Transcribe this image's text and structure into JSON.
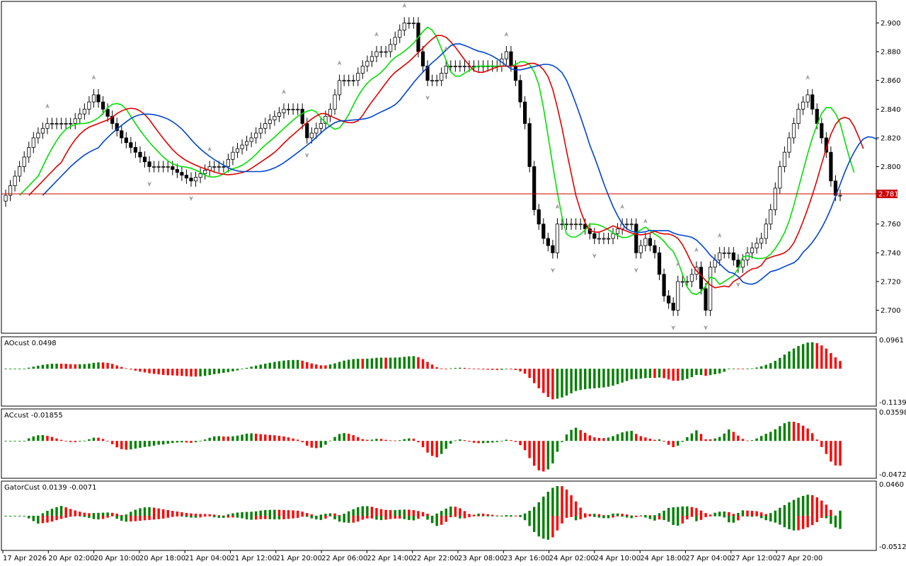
{
  "instrument": {
    "current_price_tag": "2.781",
    "price_line_color": "#cc0000"
  },
  "main_pane": {
    "price_axis": [
      "2.900",
      "2.880",
      "2.860",
      "2.840",
      "2.820",
      "2.800",
      "2.781",
      "2.760",
      "2.740",
      "2.720",
      "2.700"
    ],
    "ylim": [
      2.684,
      2.915
    ],
    "candle_colors": {
      "bull": "#ffffff",
      "bear": "#000000",
      "outline": "#000000"
    },
    "alligator_colors": {
      "lips": "#00e000",
      "teeth": "#e00000",
      "jaw": "#0044cc"
    },
    "fractal_icon": "arrowhead-icon"
  },
  "indicators": [
    {
      "key": "ao",
      "title": "AOcust 0.0498",
      "max_label": "0.0961",
      "min_label": "-0.1139"
    },
    {
      "key": "ac",
      "title": "ACcust -0.01855",
      "max_label": "0.03598",
      "min_label": "-0.04725"
    },
    {
      "key": "gator",
      "title": "GatorCust 0.0139 -0.0071",
      "max_label": "0.0460",
      "min_label": "-0.0512"
    }
  ],
  "histogram_colors": {
    "up": "#008000",
    "down": "#ff0000"
  },
  "time_axis": [
    "17 Apr 2026",
    "20 Apr 02:00",
    "20 Apr 10:00",
    "20 Apr 18:00",
    "21 Apr 04:00",
    "21 Apr 12:00",
    "21 Apr 20:00",
    "22 Apr 06:00",
    "22 Apr 14:00",
    "22 Apr 22:00",
    "23 Apr 08:00",
    "23 Apr 16:00",
    "24 Apr 02:00",
    "24 Apr 10:00",
    "24 Apr 18:00",
    "27 Apr 04:00",
    "27 Apr 12:00",
    "27 Apr 20:00"
  ],
  "chart_data": {
    "type": "candlestick",
    "price_keypoints": [
      [
        0,
        2.78
      ],
      [
        3,
        2.8
      ],
      [
        6,
        2.82
      ],
      [
        9,
        2.83
      ],
      [
        11,
        2.83
      ],
      [
        14,
        2.83
      ],
      [
        17,
        2.84
      ],
      [
        19,
        2.85
      ],
      [
        21,
        2.84
      ],
      [
        23,
        2.83
      ],
      [
        25,
        2.82
      ],
      [
        28,
        2.81
      ],
      [
        31,
        2.8
      ],
      [
        35,
        2.8
      ],
      [
        40,
        2.79
      ],
      [
        44,
        2.8
      ],
      [
        47,
        2.8
      ],
      [
        49,
        2.81
      ],
      [
        53,
        2.82
      ],
      [
        56,
        2.83
      ],
      [
        60,
        2.84
      ],
      [
        63,
        2.84
      ],
      [
        65,
        2.82
      ],
      [
        68,
        2.83
      ],
      [
        70,
        2.84
      ],
      [
        72,
        2.86
      ],
      [
        75,
        2.86
      ],
      [
        77,
        2.87
      ],
      [
        80,
        2.88
      ],
      [
        82,
        2.88
      ],
      [
        84,
        2.89
      ],
      [
        86,
        2.9
      ],
      [
        88,
        2.9
      ],
      [
        89,
        2.88
      ],
      [
        91,
        2.86
      ],
      [
        93,
        2.86
      ],
      [
        95,
        2.87
      ],
      [
        98,
        2.87
      ],
      [
        100,
        2.87
      ],
      [
        103,
        2.87
      ],
      [
        106,
        2.87
      ],
      [
        108,
        2.88
      ],
      [
        110,
        2.86
      ],
      [
        112,
        2.83
      ],
      [
        113,
        2.8
      ],
      [
        114,
        2.77
      ],
      [
        116,
        2.75
      ],
      [
        118,
        2.74
      ],
      [
        119,
        2.76
      ],
      [
        121,
        2.76
      ],
      [
        124,
        2.76
      ],
      [
        127,
        2.75
      ],
      [
        130,
        2.75
      ],
      [
        133,
        2.76
      ],
      [
        135,
        2.76
      ],
      [
        136,
        2.74
      ],
      [
        138,
        2.75
      ],
      [
        140,
        2.74
      ],
      [
        142,
        2.71
      ],
      [
        144,
        2.7
      ],
      [
        145,
        2.72
      ],
      [
        147,
        2.72
      ],
      [
        149,
        2.73
      ],
      [
        151,
        2.7
      ],
      [
        152,
        2.73
      ],
      [
        154,
        2.74
      ],
      [
        156,
        2.74
      ],
      [
        158,
        2.73
      ],
      [
        160,
        2.74
      ],
      [
        163,
        2.75
      ],
      [
        165,
        2.77
      ],
      [
        167,
        2.8
      ],
      [
        169,
        2.82
      ],
      [
        171,
        2.84
      ],
      [
        173,
        2.85
      ],
      [
        175,
        2.83
      ],
      [
        177,
        2.81
      ],
      [
        178,
        2.79
      ],
      [
        179,
        2.78
      ],
      [
        180,
        2.78
      ]
    ],
    "last_price": "2.781"
  }
}
